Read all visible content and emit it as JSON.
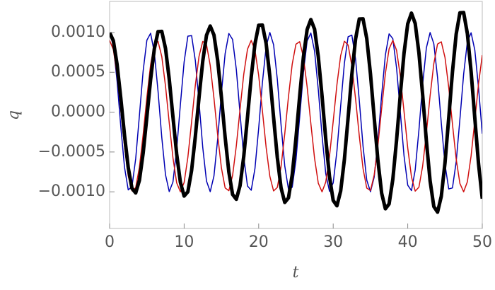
{
  "chart_data": {
    "type": "line",
    "xlabel": "t",
    "ylabel": "q",
    "xlim": [
      0,
      50
    ],
    "ylim": [
      -0.00146,
      0.00139
    ],
    "xticks": [
      0,
      10,
      20,
      30,
      40,
      50
    ],
    "yticks": [
      {
        "value": -0.001,
        "label": "−0.0010"
      },
      {
        "value": -0.0005,
        "label": "−0.0005"
      },
      {
        "value": 0,
        "label": "0.0000"
      },
      {
        "value": 0.0005,
        "label": "0.0005"
      },
      {
        "value": 0.001,
        "label": "0.0010"
      }
    ],
    "x": [
      0,
      0.5,
      1,
      1.5,
      2,
      2.5,
      3,
      3.5,
      4,
      4.5,
      5,
      5.5,
      6,
      6.5,
      7,
      7.5,
      8,
      8.5,
      9,
      9.5,
      10,
      10.5,
      11,
      11.5,
      12,
      12.5,
      13,
      13.5,
      14,
      14.5,
      15,
      15.5,
      16,
      16.5,
      17,
      17.5,
      18,
      18.5,
      19,
      19.5,
      20,
      20.5,
      21,
      21.5,
      22,
      22.5,
      23,
      23.5,
      24,
      24.5,
      25,
      25.5,
      26,
      26.5,
      27,
      27.5,
      28,
      28.5,
      29,
      29.5,
      30,
      30.5,
      31,
      31.5,
      32,
      32.5,
      33,
      33.5,
      34,
      34.5,
      35,
      35.5,
      36,
      36.5,
      37,
      37.5,
      38,
      38.5,
      39,
      39.5,
      40,
      40.5,
      41,
      41.5,
      42,
      42.5,
      43,
      43.5,
      44,
      44.5,
      45,
      45.5,
      46,
      46.5,
      47,
      47.5,
      48,
      48.5,
      49,
      49.5,
      50
    ],
    "series": [
      {
        "color": "#0000b3",
        "width": 1.5,
        "values": [
          0.001,
          0.000834,
          0.000392,
          -0.00018,
          -0.000692,
          -0.000976,
          -0.000935,
          -0.000585,
          -4.1e-05,
          0.000517,
          0.000903,
          0.00099,
          0.000749,
          0.00026,
          -0.000316,
          -0.000786,
          -0.000997,
          -0.000876,
          -0.000466,
          9.9e-05,
          0.000631,
          0.000954,
          0.000961,
          0.000649,
          0.000122,
          -0.000445,
          -0.000865,
          -0.000998,
          -0.000801,
          -0.000338,
          0.000237,
          0.000734,
          0.000987,
          0.000913,
          0.000537,
          -1.7e-05,
          -0.000566,
          -0.000927,
          -0.00098,
          -0.000709,
          -0.000203,
          0.00037,
          0.000821,
          0.001,
          0.000847,
          0.000414,
          -0.000157,
          -0.000675,
          -0.00097,
          -0.000943,
          -0.000604,
          -6.4e-05,
          0.000497,
          0.000893,
          0.000993,
          0.000765,
          0.000282,
          -0.000293,
          -0.000772,
          -0.000994,
          -0.000888,
          -0.000487,
          7.6e-05,
          0.000613,
          0.000947,
          0.000967,
          0.000667,
          0.000146,
          -0.000424,
          -0.000853,
          -0.000999,
          -0.000815,
          -0.00036,
          0.000214,
          0.000717,
          0.000983,
          0.000922,
          0.000556,
          6e-06,
          -0.000546,
          -0.000917,
          -0.000985,
          -0.000726,
          -0.000226,
          0.000348,
          0.000807,
          0.000999,
          0.000859,
          0.000435,
          -0.000133,
          -0.000658,
          -0.000964,
          -0.000951,
          -0.000623,
          -8.8e-05,
          0.000476,
          0.000882,
          0.000996,
          0.000779,
          0.000305,
          -0.00027
        ]
      },
      {
        "color": "#d01010",
        "width": 1.5,
        "values": [
          0.0009,
          0.000785,
          0.000469,
          2.8e-05,
          -0.000433,
          -0.000801,
          -0.000988,
          -0.000948,
          -0.000691,
          -0.000281,
          0.000186,
          0.000595,
          0.00085,
          0.000887,
          0.000698,
          0.000328,
          -0.000133,
          -0.000573,
          -0.000888,
          -0.001,
          -0.000883,
          -0.000566,
          -0.000123,
          0.000337,
          0.000703,
          0.000888,
          0.000847,
          0.000588,
          0.000176,
          -0.00029,
          -0.000699,
          -0.000951,
          -0.000986,
          -0.000795,
          -0.000424,
          3.7e-05,
          0.000477,
          0.00079,
          0.0009,
          0.000781,
          0.000461,
          1.8e-05,
          -0.000441,
          -0.000806,
          -0.000989,
          -0.000945,
          -0.000685,
          -0.000272,
          0.000195,
          0.000602,
          0.000853,
          0.000885,
          0.000692,
          0.00032,
          -0.000142,
          -0.000581,
          -0.000892,
          -0.001,
          -0.000878,
          -0.000557,
          -0.000114,
          0.000345,
          0.000709,
          0.00089,
          0.000843,
          0.000582,
          0.000168,
          -0.000299,
          -0.000706,
          -0.000953,
          -0.000984,
          -0.000789,
          -0.000416,
          4.6e-05,
          0.000485,
          0.000795,
          0.0009,
          0.000777,
          0.000454,
          9e-06,
          -0.00045,
          -0.000812,
          -0.000991,
          -0.000942,
          -0.000678,
          -0.000263,
          0.000204,
          0.000609,
          0.000855,
          0.000883,
          0.000686,
          0.000311,
          -0.000151,
          -0.000589,
          -0.000896,
          -0.001,
          -0.000874,
          -0.00055,
          -0.000104,
          0.000354,
          0.000715
        ]
      },
      {
        "color": "#000000",
        "width": 5,
        "values": [
          0.001,
          0.000897,
          0.000601,
          0.000176,
          -0.00029,
          -0.000696,
          -0.000957,
          -0.001014,
          -0.000855,
          -0.000514,
          -6e-05,
          0.000409,
          0.000794,
          0.001011,
          0.001014,
          0.0008,
          0.000415,
          -6.1e-05,
          -0.000527,
          -0.000883,
          -0.001053,
          -0.000999,
          -0.000731,
          -0.000307,
          0.000187,
          0.000642,
          0.000964,
          0.001081,
          0.000969,
          0.000649,
          0.00019,
          -0.000314,
          -0.000752,
          -0.001033,
          -0.001094,
          -0.000923,
          -0.000554,
          -6.4e-05,
          0.000441,
          0.000856,
          0.00109,
          0.001093,
          0.000863,
          0.000447,
          -6.6e-05,
          -0.000568,
          -0.00095,
          -0.001133,
          -0.001075,
          -0.000787,
          -0.00033,
          0.000201,
          0.00069,
          0.001036,
          0.001162,
          0.001042,
          0.000697,
          0.000204,
          -0.000337,
          -0.000807,
          -0.001109,
          -0.001175,
          -0.00099,
          -0.000595,
          -6.9e-05,
          0.000473,
          0.000918,
          0.001169,
          0.001171,
          0.000925,
          0.000479,
          -7e-05,
          -0.000608,
          -0.001018,
          -0.001213,
          -0.001152,
          -0.000842,
          -0.000353,
          0.000215,
          0.000738,
          0.001109,
          0.001243,
          0.001114,
          0.000746,
          0.000218,
          -0.00036,
          -0.000863,
          -0.001185,
          -0.001255,
          -0.001058,
          -0.000635,
          -7.4e-05,
          0.000505,
          0.00098,
          0.001247,
          0.00125,
          0.000987,
          0.000511,
          -7.5e-05,
          -0.000649,
          -0.001086
        ]
      }
    ]
  }
}
